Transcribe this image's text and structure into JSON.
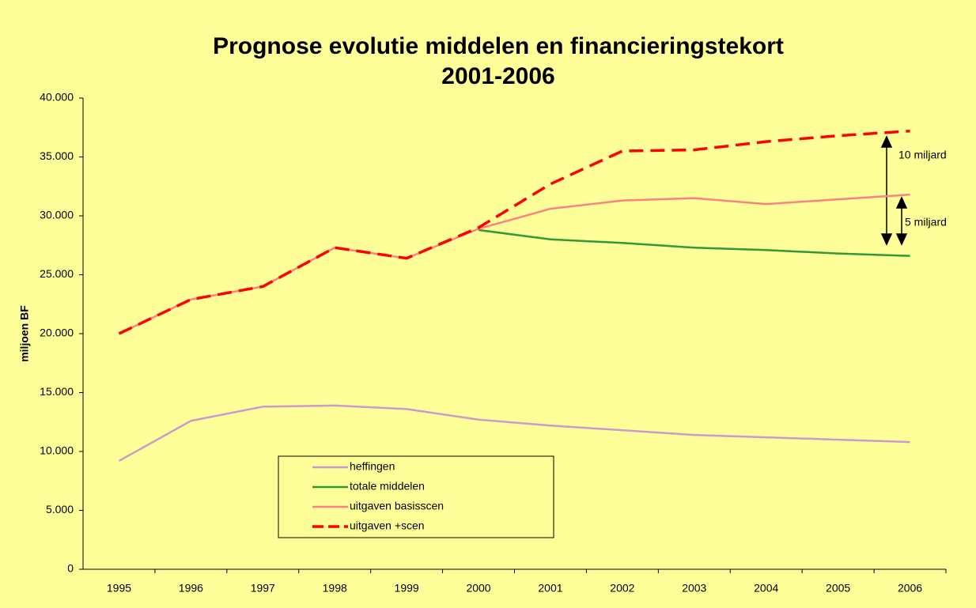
{
  "chart_data": {
    "type": "line",
    "title": "Prognose evolutie middelen en financieringstekort",
    "subtitle": "2001-2006",
    "y_label": "miljoen BF",
    "annotations": [
      "10 miljard",
      "5 miljard"
    ],
    "categories": [
      "1995",
      "1996",
      "1997",
      "1998",
      "1999",
      "2000",
      "2001",
      "2002",
      "2003",
      "2004",
      "2005",
      "2006"
    ],
    "series": [
      {
        "name": "heffingen",
        "color": "#cc99cc",
        "line_style": "solid",
        "values": [
          9200,
          12600,
          13800,
          13900,
          13600,
          12700,
          12200,
          11800,
          11400,
          11200,
          11000,
          10800
        ]
      },
      {
        "name": "totale middelen",
        "color": "#339933",
        "line_style": "solid",
        "values": [
          null,
          null,
          null,
          null,
          null,
          28800,
          28000,
          27700,
          27300,
          27100,
          26800,
          26600
        ]
      },
      {
        "name": "uitgaven basisscen",
        "color": "#ff8080",
        "line_style": "solid",
        "values": [
          20000,
          22900,
          24000,
          27300,
          26400,
          28900,
          30600,
          31300,
          31500,
          31000,
          31400,
          31800
        ]
      },
      {
        "name": "uitgaven +scen",
        "color": "#ff0000",
        "line_style": "dashed",
        "values": [
          20000,
          22900,
          24000,
          27300,
          26400,
          29000,
          32700,
          35500,
          35600,
          36300,
          36800,
          37200
        ]
      }
    ],
    "ylim": [
      0,
      40000
    ],
    "yticks": [
      0,
      {
        "value": 5000,
        "label": "5.000"
      },
      {
        "value": 10000,
        "label": "10.000"
      },
      {
        "value": 15000,
        "label": "15.000"
      },
      {
        "value": 20000,
        "label": "20.000"
      },
      {
        "value": 25000,
        "label": "25.000"
      },
      {
        "value": 30000,
        "label": "30.000"
      },
      {
        "value": 35000,
        "label": "35.000"
      },
      {
        "value": 40000,
        "label": "40.000"
      }
    ],
    "grid": false,
    "background": "#ffff99"
  }
}
